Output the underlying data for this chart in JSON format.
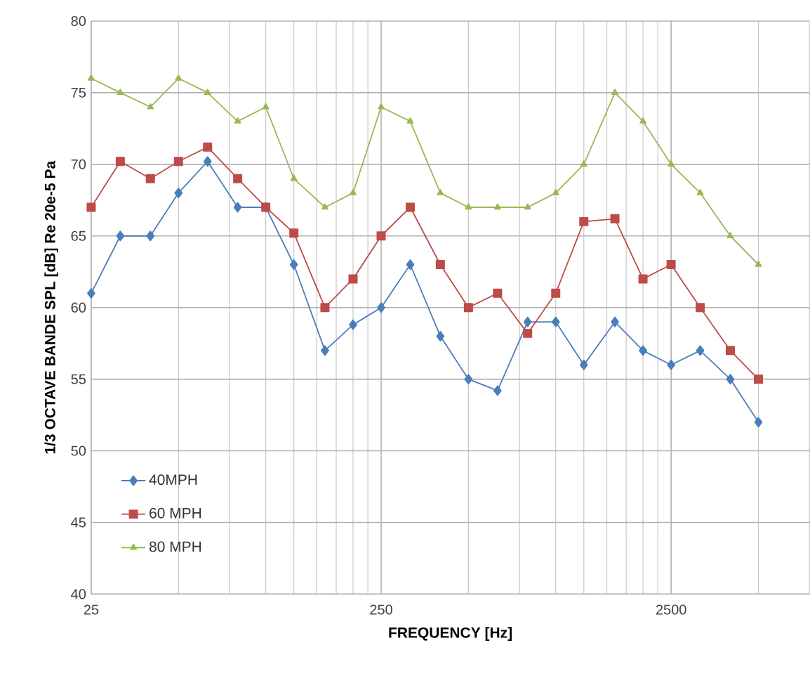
{
  "chart_data": {
    "type": "line",
    "xlabel": "FREQUENCY [Hz]",
    "ylabel": "1/3 OCTAVE BANDE SPL [dB] Re 20e-5 Pa",
    "x": [
      25,
      31.5,
      40,
      50,
      63,
      80,
      100,
      125,
      160,
      200,
      250,
      315,
      400,
      500,
      630,
      800,
      1000,
      1250,
      1600,
      2000,
      2500,
      3150,
      4000,
      5000
    ],
    "series": [
      {
        "name": "40MPH",
        "color": "#4a7ebb",
        "marker": "diamond",
        "values": [
          61,
          65,
          65,
          68,
          70.2,
          67,
          67,
          63,
          57,
          58.8,
          60,
          63,
          58,
          55,
          54.2,
          59,
          59,
          56,
          59,
          57,
          56,
          57,
          55,
          52
        ]
      },
      {
        "name": "60 MPH",
        "color": "#be4b48",
        "marker": "square",
        "values": [
          67,
          70.2,
          69,
          70.2,
          71.2,
          69,
          67,
          65.2,
          60,
          62,
          65,
          67,
          63,
          60,
          61,
          58.2,
          61,
          66,
          66.2,
          62,
          63,
          60,
          57,
          55
        ]
      },
      {
        "name": "80 MPH",
        "color": "#98b954",
        "marker": "triangle",
        "values": [
          76,
          75,
          74,
          76,
          75,
          73,
          74,
          69,
          67,
          68,
          74,
          73,
          68,
          67,
          67,
          67,
          68,
          70,
          75,
          73,
          70,
          68,
          65,
          63
        ]
      }
    ],
    "log": "x",
    "xlim": [
      25,
      7500
    ],
    "xticks": [
      25,
      250,
      2500
    ],
    "ylim": [
      40,
      80
    ],
    "yticks": [
      40,
      45,
      50,
      55,
      60,
      65,
      70,
      75,
      80
    ],
    "grid": true,
    "legend": "bottom left"
  }
}
